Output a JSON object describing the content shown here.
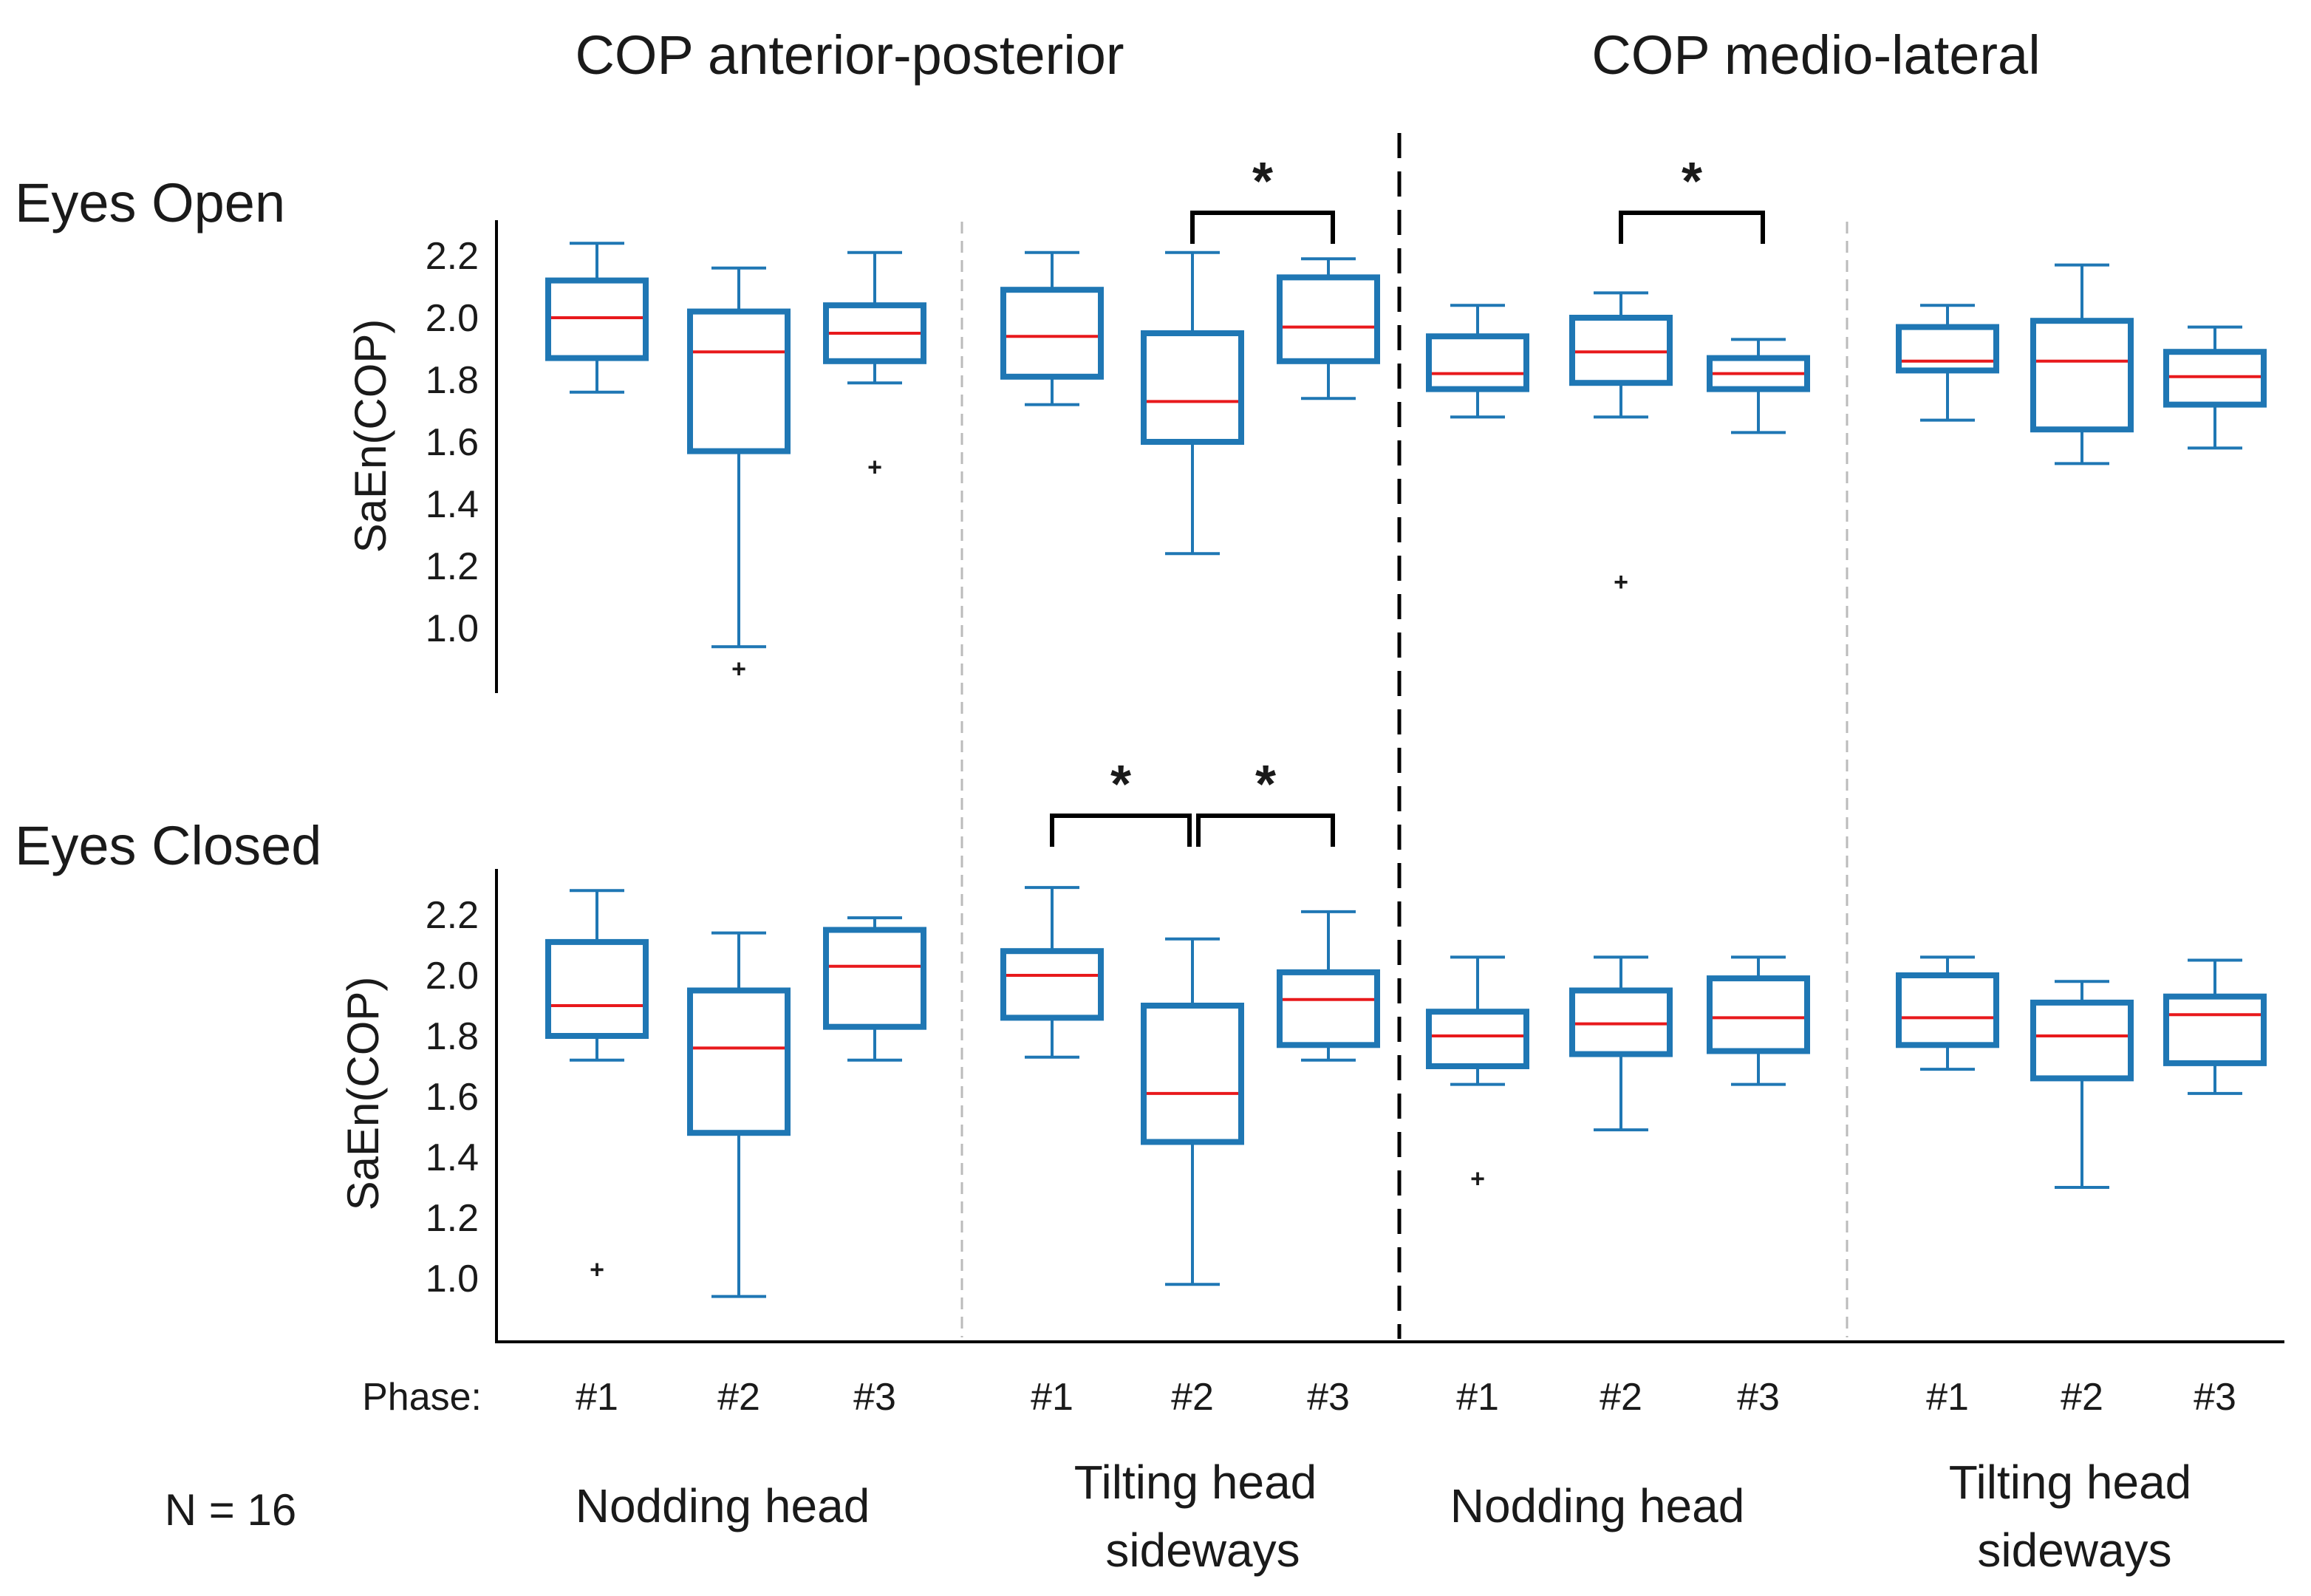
{
  "chart_data": {
    "type": "box",
    "n_label": "N = 16",
    "ylabel": "SaEn(COP)",
    "ylim": [
      0.8,
      2.3
    ],
    "yticks": [
      "2.2",
      "2.0",
      "1.8",
      "1.6",
      "1.4",
      "1.2",
      "1.0"
    ],
    "ytick_values": [
      2.2,
      2.0,
      1.8,
      1.6,
      1.4,
      1.2,
      1.0
    ],
    "section_titles": [
      "COP anterior-posterior",
      "COP medio-lateral"
    ],
    "rows": [
      {
        "label": "Eyes Open"
      },
      {
        "label": "Eyes Closed"
      }
    ],
    "phase_prefix": "Phase:",
    "phases": [
      "#1",
      "#2",
      "#3"
    ],
    "group_labels": [
      [
        "Nodding head"
      ],
      [
        "Tilting head",
        "sideways"
      ],
      [
        "Nodding head"
      ],
      [
        "Tilting head",
        "sideways"
      ]
    ],
    "significance_marker": "*",
    "colors": {
      "box": "#1f77b4",
      "median": "#e8191c",
      "outlier": "#e8191c",
      "axis": "#000000",
      "divider": "#bbbbbb"
    },
    "boxes": {
      "eyes_open": [
        [
          {
            "phase": "#1",
            "min": 1.76,
            "q1": 1.87,
            "median": 2.0,
            "q3": 2.12,
            "max": 2.24,
            "outliers": []
          },
          {
            "phase": "#2",
            "min": 0.94,
            "q1": 1.57,
            "median": 1.89,
            "q3": 2.02,
            "max": 2.16,
            "outliers": [
              0.87
            ]
          },
          {
            "phase": "#3",
            "min": 1.79,
            "q1": 1.86,
            "median": 1.95,
            "q3": 2.04,
            "max": 2.21,
            "outliers": [
              1.52
            ]
          }
        ],
        [
          {
            "phase": "#1",
            "min": 1.72,
            "q1": 1.81,
            "median": 1.94,
            "q3": 2.09,
            "max": 2.21,
            "outliers": []
          },
          {
            "phase": "#2",
            "min": 1.24,
            "q1": 1.6,
            "median": 1.73,
            "q3": 1.95,
            "max": 2.21,
            "outliers": []
          },
          {
            "phase": "#3",
            "min": 1.74,
            "q1": 1.86,
            "median": 1.97,
            "q3": 2.13,
            "max": 2.19,
            "outliers": []
          }
        ],
        [
          {
            "phase": "#1",
            "min": 1.68,
            "q1": 1.77,
            "median": 1.82,
            "q3": 1.94,
            "max": 2.04,
            "outliers": []
          },
          {
            "phase": "#2",
            "min": 1.68,
            "q1": 1.79,
            "median": 1.89,
            "q3": 2.0,
            "max": 2.08,
            "outliers": [
              1.15
            ]
          },
          {
            "phase": "#3",
            "min": 1.63,
            "q1": 1.77,
            "median": 1.82,
            "q3": 1.87,
            "max": 1.93,
            "outliers": []
          }
        ],
        [
          {
            "phase": "#1",
            "min": 1.67,
            "q1": 1.83,
            "median": 1.86,
            "q3": 1.97,
            "max": 2.04,
            "outliers": []
          },
          {
            "phase": "#2",
            "min": 1.53,
            "q1": 1.64,
            "median": 1.86,
            "q3": 1.99,
            "max": 2.17,
            "outliers": []
          },
          {
            "phase": "#3",
            "min": 1.58,
            "q1": 1.72,
            "median": 1.81,
            "q3": 1.89,
            "max": 1.97,
            "outliers": []
          }
        ]
      ],
      "eyes_closed": [
        [
          {
            "phase": "#1",
            "min": 1.72,
            "q1": 1.8,
            "median": 1.9,
            "q3": 2.11,
            "max": 2.28,
            "outliers": [
              1.03
            ]
          },
          {
            "phase": "#2",
            "min": 0.94,
            "q1": 1.48,
            "median": 1.76,
            "q3": 1.95,
            "max": 2.14,
            "outliers": []
          },
          {
            "phase": "#3",
            "min": 1.72,
            "q1": 1.83,
            "median": 2.03,
            "q3": 2.15,
            "max": 2.19,
            "outliers": []
          }
        ],
        [
          {
            "phase": "#1",
            "min": 1.73,
            "q1": 1.86,
            "median": 2.0,
            "q3": 2.08,
            "max": 2.29,
            "outliers": []
          },
          {
            "phase": "#2",
            "min": 0.98,
            "q1": 1.45,
            "median": 1.61,
            "q3": 1.9,
            "max": 2.12,
            "outliers": []
          },
          {
            "phase": "#3",
            "min": 1.72,
            "q1": 1.77,
            "median": 1.92,
            "q3": 2.01,
            "max": 2.21,
            "outliers": []
          }
        ],
        [
          {
            "phase": "#1",
            "min": 1.64,
            "q1": 1.7,
            "median": 1.8,
            "q3": 1.88,
            "max": 2.06,
            "outliers": [
              1.33
            ]
          },
          {
            "phase": "#2",
            "min": 1.49,
            "q1": 1.74,
            "median": 1.84,
            "q3": 1.95,
            "max": 2.06,
            "outliers": []
          },
          {
            "phase": "#3",
            "min": 1.64,
            "q1": 1.75,
            "median": 1.86,
            "q3": 1.99,
            "max": 2.06,
            "outliers": []
          }
        ],
        [
          {
            "phase": "#1",
            "min": 1.69,
            "q1": 1.77,
            "median": 1.86,
            "q3": 2.0,
            "max": 2.06,
            "outliers": []
          },
          {
            "phase": "#2",
            "min": 1.3,
            "q1": 1.66,
            "median": 1.8,
            "q3": 1.91,
            "max": 1.98,
            "outliers": []
          },
          {
            "phase": "#3",
            "min": 1.61,
            "q1": 1.71,
            "median": 1.87,
            "q3": 1.93,
            "max": 2.05,
            "outliers": []
          }
        ]
      ]
    },
    "significance": [
      {
        "row": "eyes_open",
        "group": 1,
        "from_phase": 2,
        "to_phase": 3,
        "label": "*"
      },
      {
        "row": "eyes_open",
        "group": 2,
        "from_phase": 2,
        "to_phase": 3,
        "label": "*"
      },
      {
        "row": "eyes_closed",
        "group": 1,
        "from_phase": 1,
        "to_phase": 2,
        "label": "*"
      },
      {
        "row": "eyes_closed",
        "group": 1,
        "from_phase": 2,
        "to_phase": 3,
        "label": "*"
      }
    ]
  }
}
